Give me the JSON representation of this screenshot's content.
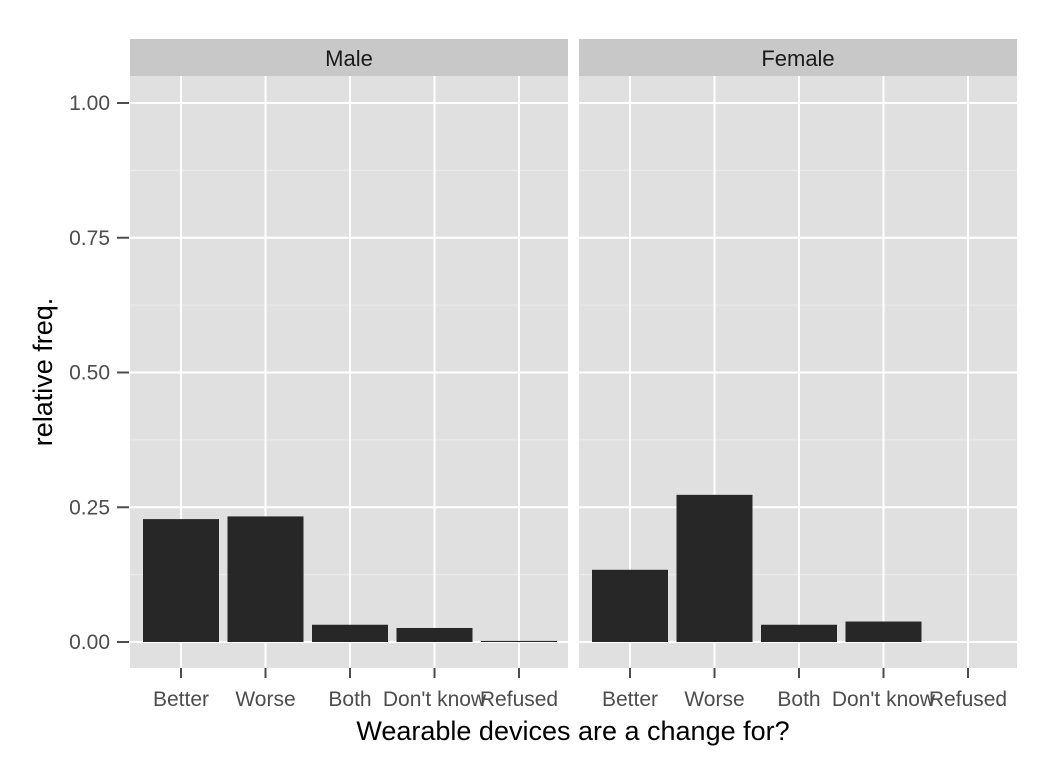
{
  "chart_data": {
    "type": "bar",
    "xlabel": "Wearable devices are a change for?",
    "ylabel": "relative freq.",
    "ylim": [
      0,
      1
    ],
    "yticks": [
      "0.00",
      "0.25",
      "0.50",
      "0.75",
      "1.00"
    ],
    "ytick_values": [
      0,
      0.25,
      0.5,
      0.75,
      1.0
    ],
    "categories": [
      "Better",
      "Worse",
      "Both",
      "Don't know",
      "Refused"
    ],
    "grid": true,
    "facets": [
      {
        "name": "Male",
        "values": [
          0.228,
          0.233,
          0.032,
          0.026,
          0.002
        ]
      },
      {
        "name": "Female",
        "values": [
          0.134,
          0.273,
          0.032,
          0.038,
          0.0
        ]
      }
    ],
    "colors": {
      "bar": "#272727",
      "panel": "#e0e0e0",
      "strip": "#c8c8c8",
      "grid": "#ffffff",
      "grid_minor": "#ebebeb"
    }
  }
}
